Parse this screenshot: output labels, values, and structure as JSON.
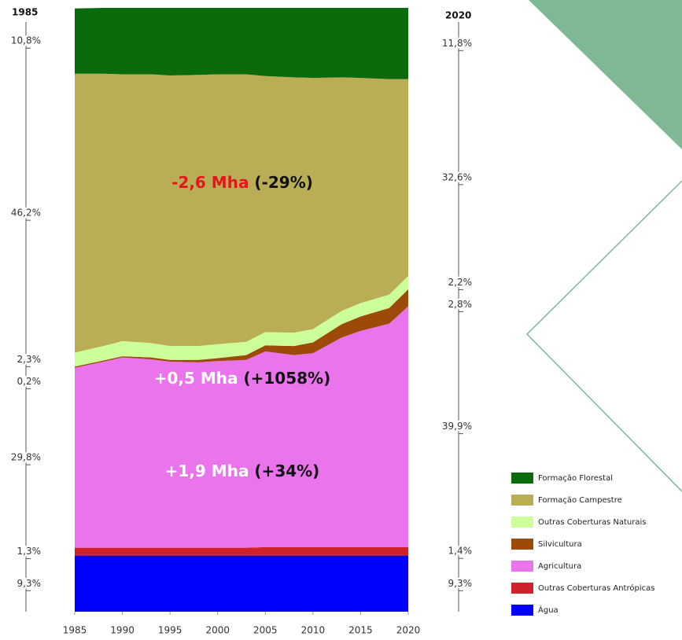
{
  "chart_data": {
    "type": "stacked_area",
    "x": [
      1985,
      1988,
      1990,
      1993,
      1995,
      1998,
      2000,
      2003,
      2005,
      2008,
      2010,
      2013,
      2015,
      2018,
      2020
    ],
    "xlim": [
      1985,
      2020
    ],
    "xticks": [
      1985,
      1990,
      1995,
      2000,
      2005,
      2010,
      2015,
      2020
    ],
    "ylim": [
      0,
      100
    ],
    "series": [
      {
        "name": "Formação Florestal",
        "color": "#0b6a0b",
        "values": [
          10.8,
          10.9,
          11.0,
          11.0,
          11.2,
          11.1,
          11.0,
          11.0,
          11.3,
          11.5,
          11.6,
          11.5,
          11.6,
          11.8,
          11.8
        ],
        "value_labels": [
          "10,8%",
          null,
          null,
          null,
          null,
          null,
          null,
          null,
          null,
          null,
          null,
          null,
          null,
          null,
          "11,8%"
        ]
      },
      {
        "name": "Formação Campestre",
        "color": "#b9ae55",
        "values": [
          46.2,
          45.1,
          44.2,
          44.5,
          44.8,
          44.9,
          44.7,
          44.3,
          42.4,
          42.3,
          41.6,
          38.7,
          37.3,
          35.7,
          32.6
        ],
        "value_labels": [
          "46,2%",
          null,
          null,
          null,
          null,
          null,
          null,
          null,
          null,
          null,
          null,
          null,
          null,
          null,
          "32,6%"
        ]
      },
      {
        "name": "Outras Coberturas Naturais",
        "color": "#ccff99",
        "values": [
          2.3,
          2.4,
          2.5,
          2.4,
          2.3,
          2.3,
          2.3,
          2.2,
          2.2,
          2.2,
          2.2,
          2.2,
          2.2,
          2.2,
          2.2
        ],
        "value_labels": [
          "2,3%",
          null,
          null,
          null,
          null,
          null,
          null,
          null,
          null,
          null,
          null,
          null,
          null,
          null,
          "2,2%"
        ]
      },
      {
        "name": "Silvicultura",
        "color": "#9b4a08",
        "values": [
          0.2,
          0.2,
          0.2,
          0.3,
          0.3,
          0.4,
          0.5,
          0.8,
          1.0,
          1.5,
          1.8,
          2.2,
          2.4,
          2.6,
          2.8
        ],
        "value_labels": [
          "0,2%",
          null,
          null,
          null,
          null,
          null,
          null,
          null,
          null,
          null,
          null,
          null,
          null,
          null,
          "2,8%"
        ]
      },
      {
        "name": "Agricultura",
        "color": "#e974ec",
        "values": [
          29.8,
          30.8,
          31.5,
          31.2,
          30.8,
          30.7,
          30.9,
          31.1,
          32.4,
          31.8,
          32.1,
          34.7,
          35.8,
          37.0,
          39.9
        ],
        "value_labels": [
          "29,8%",
          null,
          null,
          null,
          null,
          null,
          null,
          null,
          null,
          null,
          null,
          null,
          null,
          null,
          "39,9%"
        ]
      },
      {
        "name": "Outras Coberturas Antrópicas",
        "color": "#d0222b",
        "values": [
          1.3,
          1.3,
          1.3,
          1.3,
          1.3,
          1.3,
          1.3,
          1.3,
          1.4,
          1.4,
          1.4,
          1.4,
          1.4,
          1.4,
          1.4
        ],
        "value_labels": [
          "1,3%",
          null,
          null,
          null,
          null,
          null,
          null,
          null,
          null,
          null,
          null,
          null,
          null,
          null,
          "1,4%"
        ]
      },
      {
        "name": "Água",
        "color": "#0000ff",
        "values": [
          9.3,
          9.3,
          9.3,
          9.3,
          9.3,
          9.3,
          9.3,
          9.3,
          9.3,
          9.3,
          9.3,
          9.3,
          9.3,
          9.3,
          9.3
        ],
        "value_labels": [
          "9,3%",
          null,
          null,
          null,
          null,
          null,
          null,
          null,
          null,
          null,
          null,
          null,
          null,
          null,
          "9,3%"
        ]
      }
    ],
    "annotations": [
      {
        "parts": [
          {
            "text": "-2,6 Mha",
            "color": "#e8141b"
          },
          {
            "text": " (-29%)",
            "color": "#111111"
          }
        ]
      },
      {
        "parts": [
          {
            "text": "+0,5 Mha",
            "color": "#ffffff"
          },
          {
            "text": " (+1058%)",
            "color": "#111111"
          }
        ]
      },
      {
        "parts": [
          {
            "text": "+1,9 Mha",
            "color": "#ffffff"
          },
          {
            "text": " (+34%)",
            "color": "#111111"
          }
        ]
      }
    ]
  }
}
